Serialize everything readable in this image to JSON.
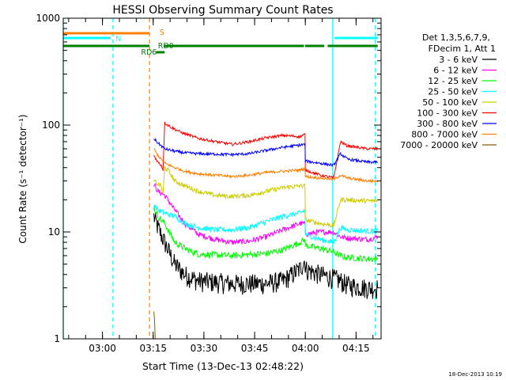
{
  "chart_data": {
    "type": "line",
    "title": "HESSI Observing Summary Count Rates",
    "xlabel": "Start Time (13-Dec-13 02:48:22)",
    "ylabel": "Count Rate (s⁻¹ detector⁻¹)",
    "y_scale": "log",
    "ylim": [
      1,
      1000
    ],
    "xlim_minutes": [
      0,
      94
    ],
    "x_ticks": [
      {
        "label": "03:00",
        "minutes": 11.6
      },
      {
        "label": "03:15",
        "minutes": 26.6
      },
      {
        "label": "03:30",
        "minutes": 41.6
      },
      {
        "label": "03:45",
        "minutes": 56.6
      },
      {
        "label": "04:00",
        "minutes": 71.6
      },
      {
        "label": "04:15",
        "minutes": 86.6
      }
    ],
    "y_ticks": [
      "1",
      "10",
      "100",
      "1000"
    ],
    "legend_header": [
      "Det 1,3,5,6,7,9,",
      "FDecim 1, Att 1"
    ],
    "legend_position": "right",
    "timestamp": "18-Dec-2013 10:19",
    "series": [
      {
        "name": "3 - 6 keV",
        "color": "#000000",
        "noise": 0.22,
        "points": [
          [
            26.8,
            14
          ],
          [
            28,
            11
          ],
          [
            30,
            8
          ],
          [
            33,
            5
          ],
          [
            36,
            4
          ],
          [
            40,
            3.5
          ],
          [
            50,
            3.3
          ],
          [
            60,
            3.3
          ],
          [
            65,
            3.5
          ],
          [
            70,
            4.5
          ],
          [
            71.5,
            5.5
          ],
          [
            71.6,
            4.5
          ],
          [
            76,
            4
          ],
          [
            80,
            3.7
          ],
          [
            82,
            3.5
          ],
          [
            84,
            3.2
          ],
          [
            90,
            3
          ],
          [
            93,
            3
          ]
        ]
      },
      {
        "name": "6 - 12 keV",
        "color": "#ff00ff",
        "noise": 0.06,
        "points": [
          [
            26.8,
            28
          ],
          [
            28,
            24
          ],
          [
            30,
            22
          ],
          [
            33,
            16
          ],
          [
            36,
            12
          ],
          [
            40,
            9.5
          ],
          [
            45,
            8.5
          ],
          [
            50,
            8
          ],
          [
            55,
            8.2
          ],
          [
            60,
            9
          ],
          [
            65,
            10.5
          ],
          [
            70,
            12
          ],
          [
            71.5,
            12
          ],
          [
            71.6,
            9.5
          ],
          [
            76,
            10
          ],
          [
            80,
            10
          ],
          [
            82,
            9
          ],
          [
            84,
            8.8
          ],
          [
            90,
            8.5
          ],
          [
            93,
            9
          ]
        ]
      },
      {
        "name": "12 - 25 keV",
        "color": "#00ff00",
        "noise": 0.07,
        "points": [
          [
            26.8,
            17
          ],
          [
            28,
            14
          ],
          [
            30,
            12
          ],
          [
            33,
            8
          ],
          [
            36,
            7
          ],
          [
            40,
            6.2
          ],
          [
            50,
            6
          ],
          [
            60,
            6.3
          ],
          [
            65,
            6.8
          ],
          [
            70,
            8
          ],
          [
            71.5,
            8.5
          ],
          [
            71.6,
            7.5
          ],
          [
            76,
            7
          ],
          [
            80,
            6.5
          ],
          [
            82,
            6
          ],
          [
            84,
            5.8
          ],
          [
            90,
            5.6
          ],
          [
            93,
            5.6
          ]
        ]
      },
      {
        "name": "25 - 50 keV",
        "color": "#00ffff",
        "noise": 0.06,
        "points": [
          [
            26.8,
            18
          ],
          [
            28,
            16
          ],
          [
            30,
            15
          ],
          [
            33,
            14
          ],
          [
            36,
            12
          ],
          [
            40,
            11
          ],
          [
            45,
            10.5
          ],
          [
            50,
            10.5
          ],
          [
            55,
            11
          ],
          [
            60,
            12.5
          ],
          [
            65,
            14
          ],
          [
            70,
            15
          ],
          [
            71.5,
            16
          ],
          [
            71.6,
            9.5
          ],
          [
            76,
            8.5
          ],
          [
            80,
            8
          ],
          [
            82,
            11
          ],
          [
            84,
            10.5
          ],
          [
            90,
            10.2
          ],
          [
            93,
            10.2
          ]
        ]
      },
      {
        "name": "50 - 100 keV",
        "color": "#cccc00",
        "noise": 0.05,
        "points": [
          [
            26.8,
            30
          ],
          [
            28,
            28
          ],
          [
            29,
            27
          ],
          [
            29.5,
            22
          ],
          [
            30,
            40
          ],
          [
            31,
            38
          ],
          [
            33,
            30
          ],
          [
            36,
            27
          ],
          [
            40,
            24
          ],
          [
            45,
            22
          ],
          [
            50,
            21.5
          ],
          [
            55,
            22
          ],
          [
            60,
            24
          ],
          [
            65,
            26
          ],
          [
            70,
            27
          ],
          [
            71.5,
            27
          ],
          [
            71.6,
            13
          ],
          [
            76,
            12
          ],
          [
            80,
            11.5
          ],
          [
            82,
            20
          ],
          [
            84,
            20
          ],
          [
            90,
            19.5
          ],
          [
            93,
            19.5
          ]
        ]
      },
      {
        "name": "100 - 300 keV",
        "color": "#ff0000",
        "noise": 0.03,
        "points": [
          [
            26.8,
            52
          ],
          [
            28,
            45
          ],
          [
            29,
            42
          ],
          [
            29.5,
            38
          ],
          [
            30,
            105
          ],
          [
            32,
            95
          ],
          [
            35,
            85
          ],
          [
            40,
            75
          ],
          [
            45,
            70
          ],
          [
            50,
            66
          ],
          [
            55,
            70
          ],
          [
            60,
            76
          ],
          [
            65,
            80
          ],
          [
            70,
            78
          ],
          [
            71.5,
            82
          ],
          [
            71.6,
            38
          ],
          [
            76,
            34
          ],
          [
            80,
            32
          ],
          [
            82,
            70
          ],
          [
            84,
            64
          ],
          [
            90,
            60
          ],
          [
            93,
            60
          ]
        ]
      },
      {
        "name": "300 - 800 keV",
        "color": "#0000ff",
        "noise": 0.03,
        "points": [
          [
            26.8,
            75
          ],
          [
            28,
            68
          ],
          [
            30,
            60
          ],
          [
            33,
            57
          ],
          [
            36,
            55
          ],
          [
            40,
            54
          ],
          [
            50,
            53
          ],
          [
            55,
            54
          ],
          [
            60,
            58
          ],
          [
            65,
            62
          ],
          [
            70,
            65
          ],
          [
            71.5,
            66
          ],
          [
            71.6,
            46
          ],
          [
            76,
            44
          ],
          [
            80,
            42
          ],
          [
            82,
            54
          ],
          [
            84,
            48
          ],
          [
            90,
            45
          ],
          [
            93,
            45
          ]
        ]
      },
      {
        "name": "800 - 7000 keV",
        "color": "#ff8000",
        "noise": 0.03,
        "points": [
          [
            26.8,
            60
          ],
          [
            28,
            52
          ],
          [
            30,
            44
          ],
          [
            33,
            40
          ],
          [
            36,
            37
          ],
          [
            40,
            35
          ],
          [
            50,
            33
          ],
          [
            55,
            34
          ],
          [
            60,
            36
          ],
          [
            65,
            37
          ],
          [
            70,
            38
          ],
          [
            71.5,
            39
          ],
          [
            71.6,
            33
          ],
          [
            76,
            32
          ],
          [
            80,
            31
          ],
          [
            82,
            34
          ],
          [
            84,
            32
          ],
          [
            90,
            30
          ],
          [
            93,
            30
          ]
        ]
      },
      {
        "name": "7000 - 20000 keV",
        "color": "#806000",
        "noise": 0,
        "points": [
          [
            26.8,
            1.8
          ],
          [
            27.0,
            1.5
          ],
          [
            27.2,
            1.0
          ],
          [
            93,
            1.0
          ]
        ]
      }
    ],
    "status_bars": [
      {
        "label": "S",
        "color": "#ff8000",
        "segments": [
          [
            0,
            25.5
          ]
        ]
      },
      {
        "label": "N",
        "color": "#00ffff",
        "segments": [
          [
            0,
            14
          ],
          [
            80.2,
            93
          ]
        ]
      },
      {
        "label": "RD6",
        "color": "#008000",
        "segments": [
          [
            27.5,
            30
          ]
        ]
      },
      {
        "label": "RD0",
        "color": "#008000",
        "segments": [
          [
            0,
            25.5
          ],
          [
            29.7,
            71.2
          ],
          [
            71.5,
            77.2
          ],
          [
            78.2,
            93
          ]
        ]
      }
    ],
    "vertical_markers": [
      {
        "minutes": 0,
        "color": "#00ffff",
        "style": "solid"
      },
      {
        "minutes": 14.7,
        "color": "#00ffff",
        "style": "dashed"
      },
      {
        "minutes": 25.5,
        "color": "#ff8000",
        "style": "dashed"
      },
      {
        "minutes": 79.7,
        "color": "#00ffff",
        "style": "solid"
      },
      {
        "minutes": 92.3,
        "color": "#00ffff",
        "style": "dashed"
      }
    ]
  }
}
